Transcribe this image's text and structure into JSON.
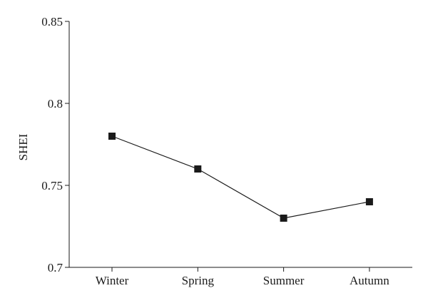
{
  "chart_data": {
    "type": "line",
    "title": "",
    "xlabel": "",
    "ylabel": "SHEI",
    "categories": [
      "Winter",
      "Spring",
      "Summer",
      "Autumn"
    ],
    "ylim": [
      0.7,
      0.85
    ],
    "yticks": [
      0.7,
      0.75,
      0.8,
      0.85
    ],
    "ytick_labels": [
      "0.7",
      "0.75",
      "0.8",
      "0.85"
    ],
    "grid": false,
    "legend": "none",
    "marker": "square",
    "color": "#1a1a1a",
    "series": [
      {
        "values": [
          0.78,
          0.76,
          0.73,
          0.74
        ]
      }
    ]
  }
}
